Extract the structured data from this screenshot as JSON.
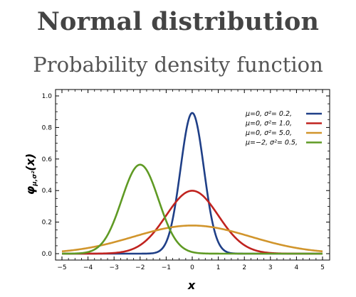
{
  "header": {
    "title": "Normal distribution",
    "subtitle": "Probability density function"
  },
  "chart_data": {
    "type": "line",
    "xlabel": "x",
    "ylabel": "φμ,σ²(x)",
    "ylabel_main": "φ",
    "ylabel_sub": "μ,σ²",
    "ylabel_arg": "(x)",
    "xlim": [
      -5,
      5
    ],
    "ylim": [
      0,
      1.0
    ],
    "xticks": [
      -5,
      -4,
      -3,
      -2,
      -1,
      0,
      1,
      2,
      3,
      4,
      5
    ],
    "xtick_labels": [
      "−5",
      "−4",
      "−3",
      "−2",
      "−1",
      "0",
      "1",
      "2",
      "3",
      "4",
      "5"
    ],
    "yticks": [
      0.0,
      0.2,
      0.4,
      0.6,
      0.8,
      1.0
    ],
    "ytick_labels": [
      "0.0",
      "0.2",
      "0.4",
      "0.6",
      "0.8",
      "1.0"
    ],
    "grid": false,
    "legend_position": "top-right",
    "series": [
      {
        "name": "μ=0,   σ²= 0.2,",
        "mu": 0,
        "sigma2": 0.2,
        "color": "#1f3f87"
      },
      {
        "name": "μ=0,   σ²= 1.0,",
        "mu": 0,
        "sigma2": 1.0,
        "color": "#c0231f"
      },
      {
        "name": "μ=0,   σ²= 5.0,",
        "mu": 0,
        "sigma2": 5.0,
        "color": "#d1952c"
      },
      {
        "name": "μ=−2,  σ²= 0.5,",
        "mu": -2,
        "sigma2": 0.5,
        "color": "#5f9a24"
      }
    ]
  }
}
